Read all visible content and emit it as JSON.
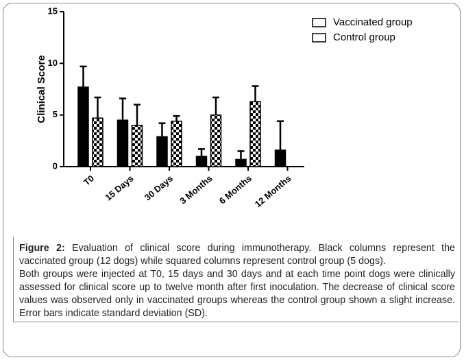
{
  "chart_data": {
    "type": "bar",
    "ylabel": "Clinical Score",
    "categories": [
      "T0",
      "15 Days",
      "30 Days",
      "3 Months",
      "6 Months",
      "12 Months"
    ],
    "series": [
      {
        "name": "Vaccinated group",
        "color": "#000000",
        "values": [
          7.7,
          4.5,
          2.9,
          1.0,
          0.7,
          1.6
        ],
        "errors": [
          2.0,
          2.1,
          1.3,
          0.7,
          0.8,
          2.8
        ]
      },
      {
        "name": "Control group",
        "color": "#000000",
        "pattern": "checker",
        "values": [
          4.7,
          4.0,
          4.4,
          5.0,
          6.3,
          null
        ],
        "errors": [
          2.0,
          2.0,
          0.5,
          1.7,
          1.5,
          null
        ]
      }
    ],
    "ylim": [
      0,
      15
    ],
    "yticks": [
      0,
      5,
      10,
      15
    ]
  },
  "caption": {
    "label": "Figure 2:",
    "paragraphs": [
      "Evaluation of clinical score during immunotherapy. Black columns represent the vaccinated group (12 dogs) while squared columns represent control group (5 dogs).",
      "Both groups were injected at T0, 15 days and 30 days and at each time point dogs were clinically assessed for clinical score up to twelve month after first inoculation. The decrease of clinical score values was observed only in vaccinated groups whereas the control group shown a slight increase. Error bars indicate standard deviation (SD)."
    ]
  }
}
